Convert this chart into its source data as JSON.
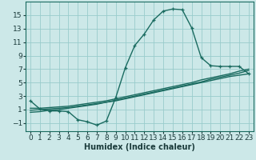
{
  "xlabel": "Humidex (Indice chaleur)",
  "ylabel": "",
  "background_color": "#cce8e8",
  "grid_color": "#99cccc",
  "line_color": "#1a6b60",
  "xlim": [
    -0.5,
    23.5
  ],
  "ylim": [
    -2.2,
    17.0
  ],
  "xticks": [
    0,
    1,
    2,
    3,
    4,
    5,
    6,
    7,
    8,
    9,
    10,
    11,
    12,
    13,
    14,
    15,
    16,
    17,
    18,
    19,
    20,
    21,
    22,
    23
  ],
  "yticks": [
    -1,
    1,
    3,
    5,
    7,
    9,
    11,
    13,
    15
  ],
  "curve1_x": [
    0,
    1,
    2,
    3,
    4,
    5,
    6,
    7,
    8,
    9,
    10,
    11,
    12,
    13,
    14,
    15,
    16,
    17,
    18,
    19,
    20,
    21,
    22,
    23
  ],
  "curve1_y": [
    2.3,
    1.1,
    0.8,
    0.8,
    0.7,
    -0.5,
    -0.8,
    -1.3,
    -0.7,
    2.8,
    7.2,
    10.5,
    12.2,
    14.3,
    15.6,
    15.9,
    15.8,
    13.1,
    8.7,
    7.5,
    7.4,
    7.4,
    7.4,
    6.3
  ],
  "curve2_x": [
    0,
    1,
    2,
    3,
    4,
    5,
    6,
    7,
    8,
    9,
    10,
    11,
    12,
    13,
    14,
    15,
    16,
    17,
    18,
    19,
    20,
    21,
    22,
    23
  ],
  "curve2_y": [
    1.2,
    1.2,
    1.3,
    1.4,
    1.5,
    1.7,
    1.9,
    2.1,
    2.3,
    2.6,
    2.9,
    3.2,
    3.5,
    3.8,
    4.1,
    4.4,
    4.7,
    5.0,
    5.4,
    5.7,
    6.0,
    6.3,
    6.7,
    7.0
  ],
  "curve3_x": [
    0,
    1,
    2,
    3,
    4,
    5,
    6,
    7,
    8,
    9,
    10,
    11,
    12,
    13,
    14,
    15,
    16,
    17,
    18,
    19,
    20,
    21,
    22,
    23
  ],
  "curve3_y": [
    0.9,
    1.0,
    1.1,
    1.2,
    1.3,
    1.5,
    1.7,
    1.9,
    2.1,
    2.4,
    2.7,
    3.0,
    3.3,
    3.6,
    3.9,
    4.2,
    4.5,
    4.8,
    5.1,
    5.5,
    5.8,
    6.1,
    6.4,
    6.8
  ],
  "curve4_x": [
    0,
    1,
    2,
    3,
    4,
    5,
    6,
    7,
    8,
    9,
    10,
    11,
    12,
    13,
    14,
    15,
    16,
    17,
    18,
    19,
    20,
    21,
    22,
    23
  ],
  "curve4_y": [
    0.6,
    0.7,
    0.9,
    1.0,
    1.2,
    1.4,
    1.6,
    1.8,
    2.1,
    2.3,
    2.6,
    2.9,
    3.2,
    3.5,
    3.8,
    4.1,
    4.4,
    4.7,
    5.0,
    5.3,
    5.6,
    5.9,
    6.1,
    6.3
  ],
  "marker": "+",
  "marker_size": 3.5,
  "line_width": 1.0,
  "font_size_label": 7,
  "font_size_tick": 6.5
}
